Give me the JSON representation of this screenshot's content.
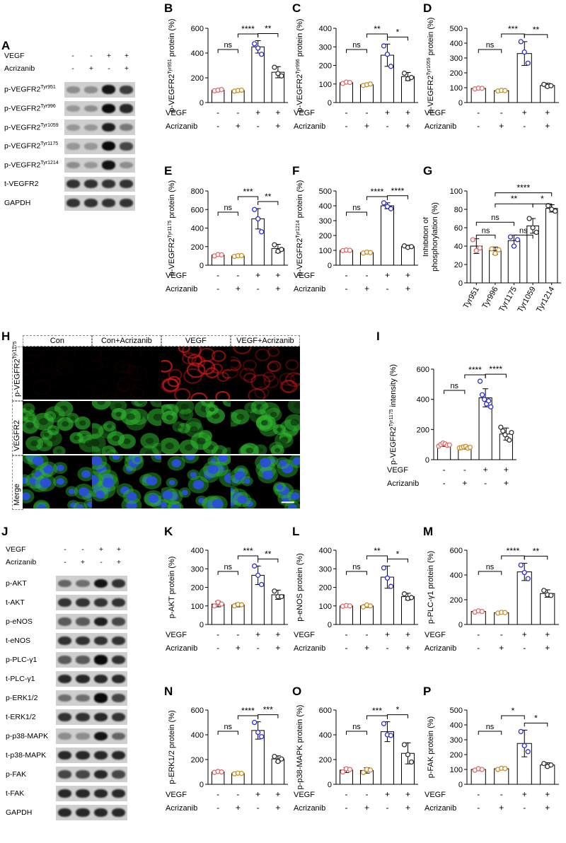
{
  "letters": {
    "A": "A",
    "B": "B",
    "C": "C",
    "D": "D",
    "E": "E",
    "F": "F",
    "G": "G",
    "H": "H",
    "I": "I",
    "J": "J",
    "K": "K",
    "L": "L",
    "M": "M",
    "N": "N",
    "O": "O",
    "P": "P"
  },
  "western_A": {
    "treat_labels": [
      "VEGF",
      "Acrizanib"
    ],
    "treat_signs": [
      [
        "-",
        "-",
        "+",
        "+"
      ],
      [
        "-",
        "+",
        "-",
        "+"
      ]
    ],
    "rows": [
      {
        "label": "p-VEGFR2",
        "sup": "Tyr951",
        "intensity": [
          0.35,
          0.35,
          0.95,
          0.75
        ]
      },
      {
        "label": "p-VEGFR2",
        "sup": "Tyr996",
        "intensity": [
          0.3,
          0.35,
          1.0,
          0.85
        ]
      },
      {
        "label": "p-VEGFR2",
        "sup": "Tyr1059",
        "intensity": [
          0.3,
          0.3,
          0.9,
          0.45
        ]
      },
      {
        "label": "p-VEGFR2",
        "sup": "Tyr1175",
        "intensity": [
          0.3,
          0.3,
          1.0,
          0.7
        ]
      },
      {
        "label": "p-VEGFR2",
        "sup": "Tyr1214",
        "intensity": [
          0.35,
          0.3,
          0.95,
          0.35
        ]
      },
      {
        "label": "t-VEGFR2",
        "sup": "",
        "intensity": [
          0.8,
          0.8,
          0.8,
          0.8
        ]
      },
      {
        "label": "GAPDH",
        "sup": "",
        "intensity": [
          0.8,
          0.8,
          0.8,
          0.8
        ]
      }
    ]
  },
  "western_J": {
    "treat_labels": [
      "VEGF",
      "Acrizanib"
    ],
    "treat_signs": [
      [
        "-",
        "-",
        "+",
        "+"
      ],
      [
        "-",
        "+",
        "-",
        "+"
      ]
    ],
    "rows": [
      {
        "label": "p-AKT",
        "intensity": [
          0.55,
          0.5,
          0.95,
          0.8
        ]
      },
      {
        "label": "t-AKT",
        "intensity": [
          0.8,
          0.8,
          0.8,
          0.8
        ]
      },
      {
        "label": "p-eNOS",
        "intensity": [
          0.6,
          0.6,
          0.9,
          0.7
        ]
      },
      {
        "label": "t-eNOS",
        "intensity": [
          0.8,
          0.8,
          0.8,
          0.8
        ]
      },
      {
        "label": "p-PLC-γ1",
        "intensity": [
          0.6,
          0.6,
          1.0,
          0.8
        ]
      },
      {
        "label": "t-PLC-γ1",
        "intensity": [
          0.85,
          0.85,
          0.85,
          0.85
        ]
      },
      {
        "label": "p-ERK1/2",
        "intensity": [
          0.5,
          0.5,
          1.0,
          0.7
        ]
      },
      {
        "label": "t-ERK1/2",
        "intensity": [
          0.8,
          0.8,
          0.85,
          0.8
        ]
      },
      {
        "label": "p-p38-MAPK",
        "intensity": [
          0.35,
          0.35,
          0.95,
          0.55
        ]
      },
      {
        "label": "t-p38-MAPK",
        "intensity": [
          0.85,
          0.85,
          0.85,
          0.85
        ]
      },
      {
        "label": "p-FAK",
        "intensity": [
          0.7,
          0.7,
          0.85,
          0.7
        ]
      },
      {
        "label": "t-FAK",
        "intensity": [
          0.85,
          0.85,
          0.85,
          0.85
        ]
      },
      {
        "label": "GAPDH",
        "intensity": [
          0.85,
          0.85,
          0.85,
          0.85
        ]
      }
    ]
  },
  "microscopy": {
    "columns": [
      "Con",
      "Con+Acrizanib",
      "VEGF",
      "VEGF+Acrizanib"
    ],
    "rows": [
      {
        "label": "p-VEGFR2",
        "sup": "Tyr1175",
        "type": "red",
        "level": [
          0.03,
          0.05,
          0.85,
          0.5
        ]
      },
      {
        "label": "VEGFR2",
        "sup": "",
        "type": "green",
        "level": [
          0.8,
          0.8,
          0.8,
          0.8
        ]
      },
      {
        "label": "Merge",
        "sup": "",
        "type": "merge",
        "level": [
          0.8,
          0.8,
          0.8,
          0.8
        ]
      }
    ],
    "colors": {
      "red": "#d01818",
      "green": "#2fb52f",
      "blue": "#2a4fd8"
    }
  },
  "chart_data": [
    {
      "id": "B",
      "type": "bar",
      "ylabel": "p-VEGFR2",
      "ysup": "Tyr951",
      "ysuffix": " protein (%)",
      "ylim": [
        0,
        600
      ],
      "ticks": [
        0,
        200,
        400,
        600
      ],
      "means": [
        100,
        97,
        450,
        245
      ],
      "errs": [
        8,
        6,
        50,
        45
      ],
      "points": [
        [
          95,
          100,
          105
        ],
        [
          92,
          97,
          100
        ],
        [
          475,
          440,
          390
        ],
        [
          285,
          235,
          215
        ]
      ],
      "sig": [
        {
          "a": 0,
          "b": 1,
          "label": "ns",
          "level": 0
        },
        {
          "a": 2,
          "b": 3,
          "label": "**",
          "level": 0
        },
        {
          "a": 1,
          "b": 2,
          "label": "****",
          "level": 1
        }
      ]
    },
    {
      "id": "C",
      "type": "bar",
      "ylabel": "p-VEGFR2",
      "ysup": "Tyr996",
      "ysuffix": " protein (%)",
      "ylim": [
        0,
        400
      ],
      "ticks": [
        0,
        100,
        200,
        300,
        400
      ],
      "means": [
        107,
        96,
        255,
        140
      ],
      "errs": [
        6,
        6,
        60,
        22
      ],
      "points": [
        [
          103,
          110,
          108
        ],
        [
          92,
          96,
          100
        ],
        [
          305,
          260,
          195
        ],
        [
          158,
          128,
          135
        ]
      ],
      "sig": [
        {
          "a": 0,
          "b": 1,
          "label": "ns",
          "level": 0
        },
        {
          "a": 2,
          "b": 3,
          "label": "*",
          "level": 0
        },
        {
          "a": 1,
          "b": 2,
          "label": "**",
          "level": 1
        }
      ]
    },
    {
      "id": "D",
      "type": "bar",
      "ylabel": "p-VEGFR2",
      "ysup": "Tyr1059",
      "ysuffix": " protein (%)",
      "ylim": [
        0,
        500
      ],
      "ticks": [
        0,
        100,
        200,
        300,
        400,
        500
      ],
      "means": [
        95,
        80,
        330,
        115
      ],
      "errs": [
        5,
        5,
        80,
        15
      ],
      "points": [
        [
          92,
          97,
          96
        ],
        [
          78,
          82,
          80
        ],
        [
          410,
          340,
          265
        ],
        [
          122,
          108,
          113
        ]
      ],
      "sig": [
        {
          "a": 0,
          "b": 1,
          "label": "ns",
          "level": 0
        },
        {
          "a": 2,
          "b": 3,
          "label": "**",
          "level": 0
        },
        {
          "a": 1,
          "b": 2,
          "label": "***",
          "level": 1
        }
      ]
    },
    {
      "id": "E",
      "type": "bar",
      "ylabel": "p-VEGFR2",
      "ysup": "Tyr1175",
      "ysuffix": " protein (%)",
      "ylim": [
        0,
        800
      ],
      "ticks": [
        0,
        200,
        400,
        600,
        800
      ],
      "means": [
        110,
        100,
        500,
        180
      ],
      "errs": [
        12,
        10,
        110,
        45
      ],
      "points": [
        [
          100,
          115,
          112
        ],
        [
          95,
          102,
          104
        ],
        [
          600,
          500,
          360
        ],
        [
          220,
          150,
          170
        ]
      ],
      "sig": [
        {
          "a": 0,
          "b": 1,
          "label": "ns",
          "level": 0
        },
        {
          "a": 2,
          "b": 3,
          "label": "**",
          "level": 0
        },
        {
          "a": 1,
          "b": 2,
          "label": "***",
          "level": 1
        }
      ]
    },
    {
      "id": "F",
      "type": "bar",
      "ylabel": "p-VEGFR2",
      "ysup": "Tyr1214",
      "ysuffix": " protein (%)",
      "ylim": [
        0,
        500
      ],
      "ticks": [
        0,
        100,
        200,
        300,
        400,
        500
      ],
      "means": [
        100,
        85,
        400,
        125
      ],
      "errs": [
        4,
        6,
        20,
        10
      ],
      "points": [
        [
          98,
          102,
          100
        ],
        [
          82,
          88,
          85
        ],
        [
          420,
          395,
          380
        ],
        [
          130,
          120,
          125
        ]
      ],
      "sig": [
        {
          "a": 0,
          "b": 1,
          "label": "ns",
          "level": 0
        },
        {
          "a": 2,
          "b": 3,
          "label": "****",
          "level": 0
        },
        {
          "a": 1,
          "b": 2,
          "label": "****",
          "level": 1
        }
      ]
    },
    {
      "id": "I",
      "type": "bar",
      "ylabel": "p-VEGFR2",
      "ysup": "Tyr1175",
      "ysuffix": " intensity (%)",
      "ylim": [
        0,
        600
      ],
      "ticks": [
        0,
        200,
        400,
        600
      ],
      "means": [
        100,
        82,
        410,
        170
      ],
      "errs": [
        12,
        12,
        60,
        40
      ],
      "points": [
        [
          90,
          100,
          110,
          105,
          95,
          98
        ],
        [
          78,
          80,
          85,
          88,
          76,
          82
        ],
        [
          520,
          430,
          400,
          370,
          390,
          350
        ],
        [
          215,
          190,
          165,
          140,
          130,
          180
        ]
      ],
      "sig": [
        {
          "a": 0,
          "b": 1,
          "label": "ns",
          "level": 0
        },
        {
          "a": 2,
          "b": 3,
          "label": "****",
          "level": 0
        },
        {
          "a": 1,
          "b": 2,
          "label": "****",
          "level": 1
        }
      ]
    },
    {
      "id": "K",
      "type": "bar",
      "ylabel": "p-AKT",
      "ysup": "",
      "ysuffix": " protein (%)",
      "ylim": [
        0,
        400
      ],
      "ticks": [
        0,
        100,
        200,
        300,
        400
      ],
      "means": [
        110,
        105,
        265,
        160
      ],
      "errs": [
        15,
        10,
        50,
        25
      ],
      "points": [
        [
          100,
          120,
          110
        ],
        [
          100,
          108,
          106
        ],
        [
          315,
          265,
          215
        ],
        [
          180,
          150,
          150
        ]
      ],
      "sig": [
        {
          "a": 0,
          "b": 1,
          "label": "ns",
          "level": 0
        },
        {
          "a": 2,
          "b": 3,
          "label": "**",
          "level": 0
        },
        {
          "a": 1,
          "b": 2,
          "label": "***",
          "level": 1
        }
      ]
    },
    {
      "id": "L",
      "type": "bar",
      "ylabel": "p-eNOS",
      "ysup": "",
      "ysuffix": " protein (%)",
      "ylim": [
        0,
        400
      ],
      "ticks": [
        0,
        100,
        200,
        300,
        400
      ],
      "means": [
        100,
        100,
        255,
        150
      ],
      "errs": [
        4,
        8,
        60,
        18
      ],
      "points": [
        [
          98,
          102,
          100
        ],
        [
          95,
          105,
          100
        ],
        [
          305,
          250,
          205
        ],
        [
          165,
          140,
          145
        ]
      ],
      "sig": [
        {
          "a": 0,
          "b": 1,
          "label": "ns",
          "level": 0
        },
        {
          "a": 2,
          "b": 3,
          "label": "*",
          "level": 0
        },
        {
          "a": 1,
          "b": 2,
          "label": "**",
          "level": 1
        }
      ]
    },
    {
      "id": "M",
      "type": "bar",
      "ylabel": "p-PLC-γ1",
      "ysup": "",
      "ysuffix": " protein (%)",
      "ylim": [
        0,
        600
      ],
      "ticks": [
        0,
        200,
        400,
        600
      ],
      "means": [
        105,
        95,
        425,
        250
      ],
      "errs": [
        8,
        6,
        70,
        30
      ],
      "points": [
        [
          100,
          110,
          105
        ],
        [
          92,
          98,
          96
        ],
        [
          480,
          420,
          370
        ],
        [
          275,
          240,
          235
        ]
      ],
      "sig": [
        {
          "a": 0,
          "b": 1,
          "label": "ns",
          "level": 0
        },
        {
          "a": 2,
          "b": 3,
          "label": "**",
          "level": 0
        },
        {
          "a": 1,
          "b": 2,
          "label": "****",
          "level": 1
        }
      ]
    },
    {
      "id": "N",
      "type": "bar",
      "ylabel": "p-ERK1/2",
      "ysup": "",
      "ysuffix": " protein (%)",
      "ylim": [
        0,
        600
      ],
      "ticks": [
        0,
        200,
        400,
        600
      ],
      "means": [
        100,
        88,
        435,
        205
      ],
      "errs": [
        6,
        5,
        70,
        25
      ],
      "points": [
        [
          96,
          104,
          100
        ],
        [
          85,
          90,
          88
        ],
        [
          500,
          420,
          385
        ],
        [
          225,
          185,
          205
        ]
      ],
      "sig": [
        {
          "a": 0,
          "b": 1,
          "label": "ns",
          "level": 0
        },
        {
          "a": 2,
          "b": 3,
          "label": "***",
          "level": 0
        },
        {
          "a": 1,
          "b": 2,
          "label": "****",
          "level": 1
        }
      ]
    },
    {
      "id": "O",
      "type": "bar",
      "ylabel": "p-p38-MAPK",
      "ysup": "",
      "ysuffix": " protein (%)",
      "ylim": [
        0,
        600
      ],
      "ticks": [
        0,
        200,
        400,
        600
      ],
      "means": [
        115,
        112,
        425,
        250
      ],
      "errs": [
        20,
        22,
        80,
        85
      ],
      "points": [
        [
          100,
          125,
          120
        ],
        [
          95,
          120,
          115
        ],
        [
          490,
          400,
          395
        ],
        [
          320,
          240,
          180
        ]
      ],
      "sig": [
        {
          "a": 0,
          "b": 1,
          "label": "ns",
          "level": 0
        },
        {
          "a": 2,
          "b": 3,
          "label": "*",
          "level": 0
        },
        {
          "a": 1,
          "b": 2,
          "label": "***",
          "level": 1
        }
      ]
    },
    {
      "id": "P",
      "type": "bar",
      "ylabel": "p-FAK",
      "ysup": "",
      "ysuffix": " protein (%)",
      "ylim": [
        0,
        500
      ],
      "ticks": [
        0,
        100,
        200,
        300,
        400,
        500
      ],
      "means": [
        100,
        105,
        275,
        130
      ],
      "errs": [
        8,
        6,
        90,
        15
      ],
      "points": [
        [
          95,
          105,
          100
        ],
        [
          100,
          108,
          106
        ],
        [
          355,
          260,
          220
        ],
        [
          140,
          120,
          130
        ]
      ],
      "sig": [
        {
          "a": 0,
          "b": 1,
          "label": "ns",
          "level": 0
        },
        {
          "a": 2,
          "b": 3,
          "label": "*",
          "level": 0
        },
        {
          "a": 1,
          "b": 2,
          "label": "*",
          "level": 1
        }
      ]
    },
    {
      "id": "G",
      "type": "bar",
      "ylabel": "Inhibition of",
      "ylabel2": "phosphorylation (%)",
      "ylim": [
        0,
        100
      ],
      "ticks": [
        0,
        20,
        40,
        60,
        80,
        100
      ],
      "categories": [
        "Tyr951",
        "Tyr996",
        "Tyr1175",
        "Tyr1059",
        "Tyr1214"
      ],
      "means": [
        40,
        35,
        46,
        62,
        81
      ],
      "errs": [
        8,
        4,
        6,
        8,
        4
      ],
      "points": [
        [
          47,
          35,
          38
        ],
        [
          37,
          32,
          36
        ],
        [
          50,
          40,
          47
        ],
        [
          70,
          60,
          55
        ],
        [
          84,
          80,
          78
        ]
      ],
      "sig": [
        {
          "a": 0,
          "b": 1,
          "label": "ns",
          "level": 0
        },
        {
          "a": 2,
          "b": 3,
          "label": "ns",
          "level": 0
        },
        {
          "a": 0,
          "b": 2,
          "label": "ns",
          "level": 1
        },
        {
          "a": 1,
          "b": 3,
          "label": "**",
          "level": 2
        },
        {
          "a": 3,
          "b": 4,
          "label": "*",
          "level": 2
        },
        {
          "a": 1,
          "b": 4,
          "label": "****",
          "level": 3
        }
      ]
    }
  ],
  "axis_groups": {
    "labels": [
      "VEGF",
      "Acrizanib"
    ],
    "signs": [
      [
        "-",
        "-",
        "+",
        "+"
      ],
      [
        "-",
        "+",
        "-",
        "+"
      ]
    ]
  },
  "bar_colors": {
    "dot_fill": [
      "#ffffff",
      "#ffffff",
      "#ffffff",
      "#ffffff"
    ],
    "dot_stroke": [
      "#e46a6a",
      "#c88f2a",
      "#2f2fd0",
      "#333333"
    ],
    "dot_stroke_g": [
      "#e46a6a",
      "#c88f2a",
      "#2f2fd0",
      "#333333",
      "#333333"
    ]
  }
}
